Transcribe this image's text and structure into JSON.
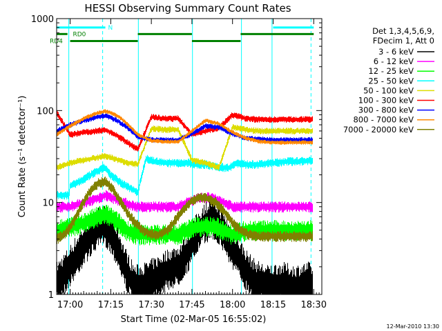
{
  "chart_data": {
    "type": "line",
    "title": "HESSI Observing Summary Count Rates",
    "xlabel": "Start Time (02-Mar-05 16:55:02)",
    "ylabel": "Count Rate (s⁻¹ detector⁻¹)",
    "yscale": "log",
    "ylim": [
      1,
      1000
    ],
    "xlim_minutes": [
      0,
      98
    ],
    "x_ticks": [
      {
        "label": "17:00",
        "min": 5
      },
      {
        "label": "17:15",
        "min": 20
      },
      {
        "label": "17:30",
        "min": 35
      },
      {
        "label": "17:45",
        "min": 50
      },
      {
        "label": "18:00",
        "min": 65
      },
      {
        "label": "18:15",
        "min": 80
      },
      {
        "label": "18:30",
        "min": 95
      }
    ],
    "y_ticks": [
      {
        "label": "1",
        "value": 1
      },
      {
        "label": "10",
        "value": 10
      },
      {
        "label": "100",
        "value": 100
      },
      {
        "label": "1000",
        "value": 1000
      }
    ],
    "legend_header": [
      "Det 1,3,4,5,6,9,",
      "FDecim 1, Att 0"
    ],
    "series": [
      {
        "name": "3 - 6 keV",
        "color": "#000000",
        "x": [
          0,
          4,
          6,
          9,
          12,
          15,
          17,
          19,
          21,
          23,
          25,
          27,
          29,
          33,
          37,
          41,
          45,
          49,
          51,
          54,
          57,
          59,
          61,
          63,
          65,
          67,
          70,
          73,
          78,
          83,
          88,
          93,
          95
        ],
        "y": [
          1.3,
          1.8,
          2.2,
          3,
          4,
          5,
          5.5,
          5,
          4,
          3,
          2,
          1.5,
          1.2,
          1.3,
          1.5,
          1.8,
          2,
          3,
          4,
          5.5,
          6.5,
          6,
          5,
          4,
          3,
          2.5,
          1.8,
          1.4,
          1.2,
          1.3,
          1.2,
          1.3,
          1.2
        ],
        "lo": 0.7,
        "hi": 1.5
      },
      {
        "name": "6 - 12 keV",
        "color": "#ff00ff",
        "x": [
          0,
          5,
          10,
          15,
          18,
          20,
          23,
          27,
          30,
          35,
          40,
          45,
          48,
          52,
          55,
          58,
          62,
          65,
          70,
          75,
          80,
          85,
          90,
          95
        ],
        "y": [
          9,
          9,
          10,
          11,
          12,
          11.5,
          10.5,
          9.5,
          9,
          9,
          9,
          9,
          10,
          11,
          11.5,
          11,
          10,
          9,
          9,
          9,
          9,
          9,
          9,
          9
        ],
        "lo": 0.9,
        "hi": 1.1
      },
      {
        "name": "12 - 25 keV",
        "color": "#00ff00",
        "x": [
          0,
          5,
          10,
          15,
          18,
          20,
          23,
          26,
          30,
          35,
          40,
          45,
          48,
          52,
          55,
          58,
          62,
          65,
          70,
          75,
          80,
          85,
          90,
          95
        ],
        "y": [
          5,
          5.5,
          6,
          7,
          7.5,
          7,
          6,
          5,
          4.5,
          4.5,
          4.5,
          4.5,
          5,
          5.5,
          5.5,
          5.5,
          5,
          4.5,
          5,
          5,
          5,
          5,
          5,
          5
        ],
        "lo": 0.82,
        "hi": 1.2
      },
      {
        "name": "25 - 50 keV",
        "color": "#00ffff",
        "x": [
          0,
          4.5,
          5,
          10,
          15,
          18,
          20,
          23,
          26,
          30,
          33,
          36,
          40,
          45,
          49,
          52,
          55,
          58,
          62,
          64,
          66,
          70,
          75,
          80,
          85,
          90,
          95
        ],
        "y": [
          12,
          12,
          15,
          18,
          22,
          24,
          20,
          17,
          15,
          13,
          30,
          28,
          27,
          27,
          27,
          26,
          26,
          25,
          24,
          24,
          27,
          26,
          26,
          27,
          28,
          28,
          29
        ],
        "lo": 0.92,
        "hi": 1.08
      },
      {
        "name": "50 - 100 keV",
        "color": "#dddd00",
        "x": [
          0,
          5,
          10,
          15,
          18,
          20,
          23,
          26,
          30,
          35,
          40,
          45,
          50,
          55,
          60,
          65,
          70,
          75,
          80,
          85,
          90,
          95
        ],
        "y": [
          24,
          27,
          29,
          31,
          32,
          31,
          29,
          27,
          26,
          64,
          62,
          62,
          29,
          27,
          24,
          66,
          62,
          60,
          60,
          60,
          60,
          60
        ],
        "lo": 0.94,
        "hi": 1.06
      },
      {
        "name": "100 - 300 keV",
        "color": "#ff0000",
        "x": [
          0,
          5,
          10,
          15,
          18,
          20,
          23,
          26,
          30,
          35,
          40,
          45,
          50,
          55,
          60,
          65,
          70,
          75,
          80,
          85,
          90,
          95
        ],
        "y": [
          95,
          55,
          58,
          60,
          62,
          58,
          52,
          45,
          38,
          85,
          82,
          82,
          55,
          60,
          65,
          90,
          82,
          80,
          80,
          80,
          80,
          80
        ],
        "lo": 0.94,
        "hi": 1.06
      },
      {
        "name": "300 - 800 keV",
        "color": "#0000ff",
        "x": [
          0,
          5,
          10,
          15,
          18,
          20,
          23,
          26,
          30,
          35,
          40,
          45,
          50,
          55,
          60,
          65,
          70,
          75,
          80,
          85,
          90,
          95
        ],
        "y": [
          60,
          70,
          78,
          85,
          88,
          84,
          76,
          66,
          52,
          48,
          48,
          48,
          56,
          68,
          66,
          56,
          50,
          49,
          48,
          48,
          48,
          48
        ],
        "lo": 0.95,
        "hi": 1.05
      },
      {
        "name": "800 - 7000 keV",
        "color": "#ff8800",
        "x": [
          0,
          5,
          10,
          15,
          18,
          20,
          23,
          26,
          30,
          35,
          40,
          45,
          50,
          55,
          60,
          65,
          70,
          75,
          80,
          85,
          90,
          95
        ],
        "y": [
          55,
          68,
          82,
          94,
          98,
          95,
          86,
          72,
          55,
          47,
          46,
          46,
          60,
          78,
          72,
          58,
          50,
          46,
          45,
          45,
          45,
          45
        ],
        "lo": 0.96,
        "hi": 1.04
      },
      {
        "name": "7000 - 20000 keV",
        "color": "#808000",
        "x": [
          0,
          3,
          6,
          9,
          12,
          15,
          18,
          20,
          23,
          26,
          29,
          32,
          35,
          38,
          41,
          44,
          47,
          50,
          53,
          56,
          59,
          62,
          65,
          68,
          71,
          75,
          80,
          85,
          90,
          95
        ],
        "y": [
          4,
          4.5,
          6,
          9,
          13,
          16,
          17,
          15,
          11,
          8,
          6,
          5,
          4.5,
          4.5,
          5,
          6.5,
          8.5,
          10.5,
          11.5,
          11,
          10,
          8,
          6,
          5,
          4.5,
          4.3,
          4.3,
          4.3,
          4.3,
          4.3
        ],
        "lo": 0.9,
        "hi": 1.1
      }
    ],
    "vlines_solid": [
      4.5,
      30.2,
      50.2,
      68.3,
      79.6
    ],
    "vlines_dashed": [
      17,
      94
    ],
    "flags": [
      {
        "name": "N",
        "color": "#00ffff",
        "segments": [
          [
            0,
            18
          ],
          [
            80,
            95
          ]
        ],
        "level": 800,
        "label_min": 19
      },
      {
        "name": "RD0",
        "color": "#008000",
        "segments": [
          [
            0,
            4
          ],
          [
            30,
            50
          ],
          [
            68,
            95
          ]
        ],
        "level": 680,
        "label_min": 6
      },
      {
        "name": "RD4",
        "color": "#008000",
        "segments": [
          [
            5,
            30
          ],
          [
            50,
            68
          ]
        ],
        "level": 570,
        "label_min": 0
      }
    ],
    "timestamp": "12-Mar-2010 13:30"
  }
}
